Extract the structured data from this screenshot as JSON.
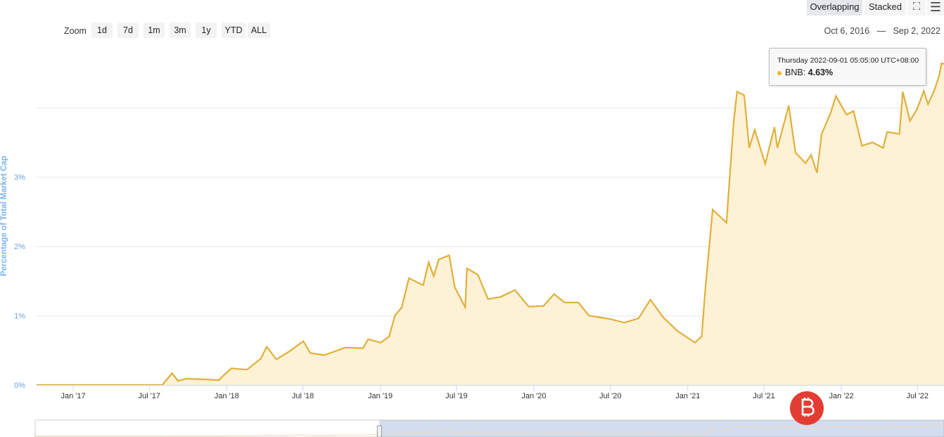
{
  "toolbar": {
    "zoom_label": "Zoom",
    "zoom_buttons": [
      "1d",
      "7d",
      "1m",
      "3m",
      "1y",
      "YTD",
      "ALL"
    ],
    "mode_buttons": [
      "Overlapping",
      "Stacked"
    ],
    "active_mode": "Overlapping",
    "fullscreen_icon": "fullscreen-icon",
    "menu_icon": "hamburger-menu-icon",
    "range_from": "Oct 6, 2016",
    "range_sep": "—",
    "range_to": "Sep 2, 2022"
  },
  "tooltip": {
    "title": "Thursday 2022-09-01 05:05:00 UTC+08:00",
    "series": "BNB:",
    "value": "4.63%",
    "color": "#e8b92f"
  },
  "chart_data": {
    "type": "area",
    "ylabel": "Percentage of Total Market Cap",
    "xlabel": "",
    "xlim": [
      "2016-10-06",
      "2022-09-02"
    ],
    "ylim": [
      0,
      4.9
    ],
    "yticks": [
      0,
      1,
      2,
      3,
      4
    ],
    "ytick_labels": [
      "0%",
      "1%",
      "2%",
      "3%",
      ""
    ],
    "xtick_labels": [
      {
        "date": "2017-01-01",
        "label": "Jan '17"
      },
      {
        "date": "2017-07-01",
        "label": "Jul '17"
      },
      {
        "date": "2018-01-01",
        "label": "Jan '18"
      },
      {
        "date": "2018-07-01",
        "label": "Jul '18"
      },
      {
        "date": "2019-01-01",
        "label": "Jan '19"
      },
      {
        "date": "2019-07-01",
        "label": "Jul '19"
      },
      {
        "date": "2020-01-01",
        "label": "Jan '20"
      },
      {
        "date": "2020-07-01",
        "label": "Jul '20"
      },
      {
        "date": "2021-01-01",
        "label": "Jan '21"
      },
      {
        "date": "2021-07-01",
        "label": "Jul '21"
      },
      {
        "date": "2022-01-01",
        "label": "Jan '22"
      },
      {
        "date": "2022-07-01",
        "label": "Jul '22"
      }
    ],
    "grid": true,
    "series": [
      {
        "name": "BNB",
        "color": "#e0b03a",
        "fill": "#fdf1d6",
        "points": [
          [
            "2016-10-06",
            0
          ],
          [
            "2017-08-01",
            0
          ],
          [
            "2017-08-24",
            0.17
          ],
          [
            "2017-09-07",
            0.06
          ],
          [
            "2017-09-28",
            0.09
          ],
          [
            "2017-11-09",
            0.08
          ],
          [
            "2017-12-13",
            0.07
          ],
          [
            "2017-12-27",
            0.15
          ],
          [
            "2018-01-12",
            0.24
          ],
          [
            "2018-02-18",
            0.22
          ],
          [
            "2018-03-23",
            0.38
          ],
          [
            "2018-04-06",
            0.55
          ],
          [
            "2018-04-29",
            0.37
          ],
          [
            "2018-05-29",
            0.48
          ],
          [
            "2018-07-02",
            0.63
          ],
          [
            "2018-07-19",
            0.46
          ],
          [
            "2018-08-21",
            0.43
          ],
          [
            "2018-10-10",
            0.54
          ],
          [
            "2018-11-21",
            0.53
          ],
          [
            "2018-12-03",
            0.66
          ],
          [
            "2019-01-02",
            0.61
          ],
          [
            "2019-01-22",
            0.7
          ],
          [
            "2019-02-05",
            1.0
          ],
          [
            "2019-02-21",
            1.12
          ],
          [
            "2019-03-10",
            1.54
          ],
          [
            "2019-04-13",
            1.44
          ],
          [
            "2019-04-26",
            1.77
          ],
          [
            "2019-05-08",
            1.57
          ],
          [
            "2019-05-20",
            1.81
          ],
          [
            "2019-06-14",
            1.87
          ],
          [
            "2019-06-27",
            1.41
          ],
          [
            "2019-07-22",
            1.12
          ],
          [
            "2019-07-26",
            1.68
          ],
          [
            "2019-08-21",
            1.59
          ],
          [
            "2019-09-14",
            1.24
          ],
          [
            "2019-10-14",
            1.27
          ],
          [
            "2019-11-17",
            1.37
          ],
          [
            "2019-12-20",
            1.13
          ],
          [
            "2020-01-24",
            1.14
          ],
          [
            "2020-02-18",
            1.31
          ],
          [
            "2020-03-14",
            1.19
          ],
          [
            "2020-04-16",
            1.19
          ],
          [
            "2020-05-11",
            1.0
          ],
          [
            "2020-07-01",
            0.95
          ],
          [
            "2020-08-03",
            0.9
          ],
          [
            "2020-09-06",
            0.96
          ],
          [
            "2020-10-04",
            1.23
          ],
          [
            "2020-11-03",
            0.98
          ],
          [
            "2020-12-07",
            0.78
          ],
          [
            "2021-01-18",
            0.61
          ],
          [
            "2021-02-03",
            0.7
          ],
          [
            "2021-02-12",
            1.41
          ],
          [
            "2021-03-01",
            2.53
          ],
          [
            "2021-04-03",
            2.34
          ],
          [
            "2021-04-20",
            3.8
          ],
          [
            "2021-04-28",
            4.23
          ],
          [
            "2021-05-15",
            4.18
          ],
          [
            "2021-05-27",
            3.42
          ],
          [
            "2021-06-09",
            3.68
          ],
          [
            "2021-07-04",
            3.19
          ],
          [
            "2021-07-26",
            3.72
          ],
          [
            "2021-08-02",
            3.42
          ],
          [
            "2021-08-29",
            4.03
          ],
          [
            "2021-09-14",
            3.35
          ],
          [
            "2021-10-08",
            3.2
          ],
          [
            "2021-10-21",
            3.32
          ],
          [
            "2021-11-04",
            3.06
          ],
          [
            "2021-11-15",
            3.62
          ],
          [
            "2021-12-07",
            3.93
          ],
          [
            "2021-12-19",
            4.17
          ],
          [
            "2022-01-13",
            3.9
          ],
          [
            "2022-01-30",
            3.95
          ],
          [
            "2022-02-19",
            3.45
          ],
          [
            "2022-03-16",
            3.5
          ],
          [
            "2022-04-10",
            3.42
          ],
          [
            "2022-04-20",
            3.65
          ],
          [
            "2022-05-19",
            3.62
          ],
          [
            "2022-05-27",
            4.23
          ],
          [
            "2022-06-13",
            3.81
          ],
          [
            "2022-06-30",
            3.98
          ],
          [
            "2022-07-16",
            4.24
          ],
          [
            "2022-07-26",
            4.05
          ],
          [
            "2022-08-10",
            4.25
          ],
          [
            "2022-08-22",
            4.47
          ],
          [
            "2022-08-27",
            4.64
          ],
          [
            "2022-09-02",
            4.63
          ]
        ]
      }
    ],
    "navigator": {
      "selected_from": "2019-01-01",
      "selected_to": "2022-09-02"
    }
  }
}
